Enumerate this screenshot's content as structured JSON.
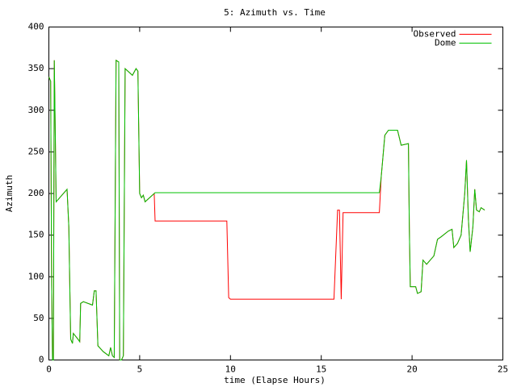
{
  "chart_data": {
    "type": "line",
    "title": "5: Azimuth vs. Time",
    "xlabel": "time (Elapse Hours)",
    "ylabel": "Azimuth",
    "x": [
      0,
      0.1,
      0.15,
      0.2,
      0.25,
      0.3,
      0.35,
      0.4,
      1.0,
      1.1,
      1.2,
      1.3,
      1.35,
      1.6,
      1.7,
      1.75,
      1.9,
      2.4,
      2.5,
      2.6,
      2.7,
      3.0,
      3.3,
      3.4,
      3.5,
      3.6,
      3.7,
      3.85,
      3.9,
      4.0,
      4.1,
      4.2,
      4.6,
      4.8,
      4.9,
      5.0,
      5.1,
      5.2,
      5.3,
      5.7,
      5.8,
      5.85,
      7.5,
      9.8,
      9.9,
      10.0,
      15.7,
      15.9,
      16.0,
      16.1,
      16.2,
      18.2,
      18.3,
      18.5,
      18.7,
      19.2,
      19.4,
      19.8,
      19.85,
      19.9,
      20.2,
      20.3,
      20.5,
      20.6,
      20.8,
      21.0,
      21.2,
      21.4,
      21.6,
      22.0,
      22.2,
      22.3,
      22.5,
      22.7,
      22.9,
      23.0,
      23.1,
      23.2,
      23.35,
      23.45,
      23.55,
      23.7,
      23.8,
      24.0
    ],
    "series": [
      {
        "name": "Observed",
        "color": "#ff0000",
        "values": [
          340,
          335,
          90,
          0,
          0,
          360,
          275,
          190,
          205,
          160,
          25,
          20,
          32,
          25,
          22,
          68,
          70,
          66,
          83,
          83,
          17,
          10,
          5,
          15,
          5,
          3,
          360,
          358,
          0,
          0,
          5,
          350,
          342,
          350,
          347,
          200,
          195,
          198,
          190,
          198,
          200,
          167,
          167,
          167,
          75,
          73,
          73,
          180,
          180,
          73,
          177,
          177,
          220,
          270,
          276,
          276,
          258,
          260,
          160,
          88,
          88,
          80,
          82,
          120,
          115,
          120,
          125,
          145,
          148,
          155,
          157,
          135,
          140,
          150,
          200,
          240,
          170,
          130,
          160,
          205,
          180,
          178,
          183,
          180
        ]
      },
      {
        "name": "Dome",
        "color": "#00c000",
        "values": [
          340,
          335,
          90,
          0,
          0,
          360,
          275,
          190,
          205,
          160,
          25,
          20,
          32,
          25,
          22,
          68,
          70,
          66,
          83,
          83,
          17,
          10,
          5,
          15,
          5,
          3,
          360,
          358,
          0,
          0,
          5,
          350,
          342,
          350,
          347,
          200,
          195,
          198,
          190,
          198,
          200,
          201,
          201,
          201,
          201,
          201,
          201,
          201,
          201,
          201,
          201,
          201,
          220,
          270,
          276,
          276,
          258,
          260,
          160,
          88,
          88,
          80,
          82,
          120,
          115,
          120,
          125,
          145,
          148,
          155,
          157,
          135,
          140,
          150,
          200,
          240,
          170,
          130,
          160,
          205,
          180,
          178,
          183,
          180
        ]
      }
    ],
    "xlim": [
      0,
      25
    ],
    "xticks": [
      0,
      5,
      10,
      15,
      20,
      25
    ],
    "ylim": [
      0,
      400
    ],
    "yticks": [
      0,
      50,
      100,
      150,
      200,
      250,
      300,
      350,
      400
    ],
    "legend": "top right"
  }
}
